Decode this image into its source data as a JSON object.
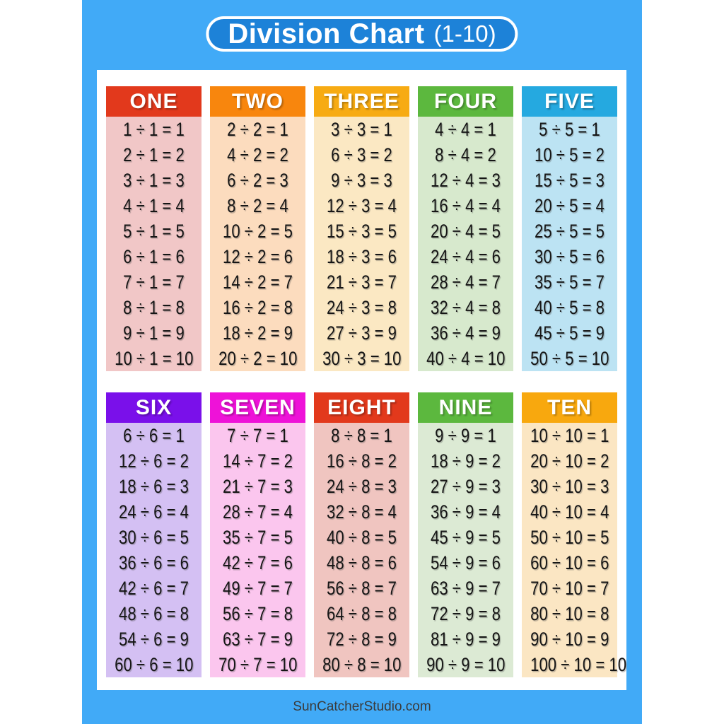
{
  "poster": {
    "title": "Division Chart",
    "title_suffix": "(1-10)",
    "footer": "SunCatcherStudio.com",
    "colors": {
      "background_blue": "#41aaf7",
      "banner_blue": "#1d82d8",
      "panel_white": "#ffffff",
      "equation_text": "#151515"
    }
  },
  "chart_data": {
    "type": "table",
    "title": "Division Chart (1-10)",
    "layout": "2 rows x 5 color-coded columns, 10 equations per column",
    "columns": [
      {
        "label": "ONE",
        "divisor": 1,
        "header_color": "#e2391c",
        "body_color": "#f1c7c7",
        "equations": [
          "1 ÷ 1 = 1",
          "2 ÷ 1 = 2",
          "3 ÷ 1 = 3",
          "4 ÷ 1 = 4",
          "5 ÷ 1 = 5",
          "6 ÷ 1 = 6",
          "7 ÷ 1 = 7",
          "8 ÷ 1 = 8",
          "9 ÷ 1 = 9",
          "10 ÷ 1 = 10"
        ]
      },
      {
        "label": "TWO",
        "divisor": 2,
        "header_color": "#f8860d",
        "body_color": "#fcdcbe",
        "equations": [
          "2 ÷ 2 = 1",
          "4 ÷ 2 = 2",
          "6 ÷ 2 = 3",
          "8 ÷ 2 = 4",
          "10 ÷ 2 = 5",
          "12 ÷ 2 = 6",
          "14 ÷ 2 = 7",
          "16 ÷ 2 = 8",
          "18 ÷ 2 = 9",
          "20 ÷ 2 = 10"
        ]
      },
      {
        "label": "THREE",
        "divisor": 3,
        "header_color": "#f7ab13",
        "body_color": "#fbe8c3",
        "equations": [
          "3 ÷ 3 = 1",
          "6 ÷ 3 = 2",
          "9 ÷ 3 = 3",
          "12 ÷ 3 = 4",
          "15 ÷ 3 = 5",
          "18 ÷ 3 = 6",
          "21 ÷ 3 = 7",
          "24 ÷ 3 = 8",
          "27 ÷ 3 = 9",
          "30 ÷ 3 = 10"
        ]
      },
      {
        "label": "FOUR",
        "divisor": 4,
        "header_color": "#5cb83e",
        "body_color": "#d7e9cd",
        "equations": [
          "4 ÷ 4 = 1",
          "8 ÷ 4 = 2",
          "12 ÷ 4 = 3",
          "16 ÷ 4 = 4",
          "20 ÷ 4 = 5",
          "24 ÷ 4 = 6",
          "28 ÷ 4 = 7",
          "32 ÷ 4 = 8",
          "36 ÷ 4 = 9",
          "40 ÷ 4 = 10"
        ]
      },
      {
        "label": "FIVE",
        "divisor": 5,
        "header_color": "#25a9e0",
        "body_color": "#bce3f3",
        "equations": [
          "5 ÷ 5 = 1",
          "10 ÷ 5 = 2",
          "15 ÷ 5 = 3",
          "20 ÷ 5 = 4",
          "25 ÷ 5 = 5",
          "30 ÷ 5 = 6",
          "35 ÷ 5 = 7",
          "40 ÷ 5 = 8",
          "45 ÷ 5 = 9",
          "50 ÷ 5 = 10"
        ]
      },
      {
        "label": "SIX",
        "divisor": 6,
        "header_color": "#7a10ea",
        "body_color": "#d4c0f3",
        "equations": [
          "6 ÷ 6 = 1",
          "12 ÷ 6 = 2",
          "18 ÷ 6 = 3",
          "24 ÷ 6 = 4",
          "30 ÷ 6 = 5",
          "36 ÷ 6 = 6",
          "42 ÷ 6 = 7",
          "48 ÷ 6 = 8",
          "54 ÷ 6 = 9",
          "60 ÷ 6 = 10"
        ]
      },
      {
        "label": "SEVEN",
        "divisor": 7,
        "header_color": "#ee12d8",
        "body_color": "#fbc6ee",
        "equations": [
          "7 ÷ 7 = 1",
          "14 ÷ 7 = 2",
          "21 ÷ 7 = 3",
          "28 ÷ 7 = 4",
          "35 ÷ 7 = 5",
          "42 ÷ 7 = 6",
          "49 ÷ 7 = 7",
          "56 ÷ 7 = 8",
          "63 ÷ 7 = 9",
          "70 ÷ 7 = 10"
        ]
      },
      {
        "label": "EIGHT",
        "divisor": 8,
        "header_color": "#e2391c",
        "body_color": "#f0c5c0",
        "equations": [
          "8 ÷ 8 = 1",
          "16 ÷ 8 = 2",
          "24 ÷ 8 = 3",
          "32 ÷ 8 = 4",
          "40 ÷ 8 = 5",
          "48 ÷ 8 = 6",
          "56 ÷ 8 = 7",
          "64 ÷ 8 = 8",
          "72 ÷ 8 = 9",
          "80 ÷ 8 = 10"
        ]
      },
      {
        "label": "NINE",
        "divisor": 9,
        "header_color": "#5cb83e",
        "body_color": "#dcead4",
        "equations": [
          "9 ÷ 9 = 1",
          "18 ÷ 9 = 2",
          "27 ÷ 9 = 3",
          "36 ÷ 9 = 4",
          "45 ÷ 9 = 5",
          "54 ÷ 9 = 6",
          "63 ÷ 9 = 7",
          "72 ÷ 9 = 8",
          "81 ÷ 9 = 9",
          "90 ÷ 9 = 10"
        ]
      },
      {
        "label": "TEN",
        "divisor": 10,
        "header_color": "#f8a80e",
        "body_color": "#fbe6c3",
        "equations": [
          "10 ÷ 10 = 1",
          "20 ÷ 10 = 2",
          "30 ÷ 10 = 3",
          "40 ÷ 10 = 4",
          "50 ÷ 10 = 5",
          "60 ÷ 10 = 6",
          "70 ÷ 10 = 7",
          "80 ÷ 10 = 8",
          "90 ÷ 10 = 9",
          "100 ÷ 10 = 10"
        ]
      }
    ]
  }
}
